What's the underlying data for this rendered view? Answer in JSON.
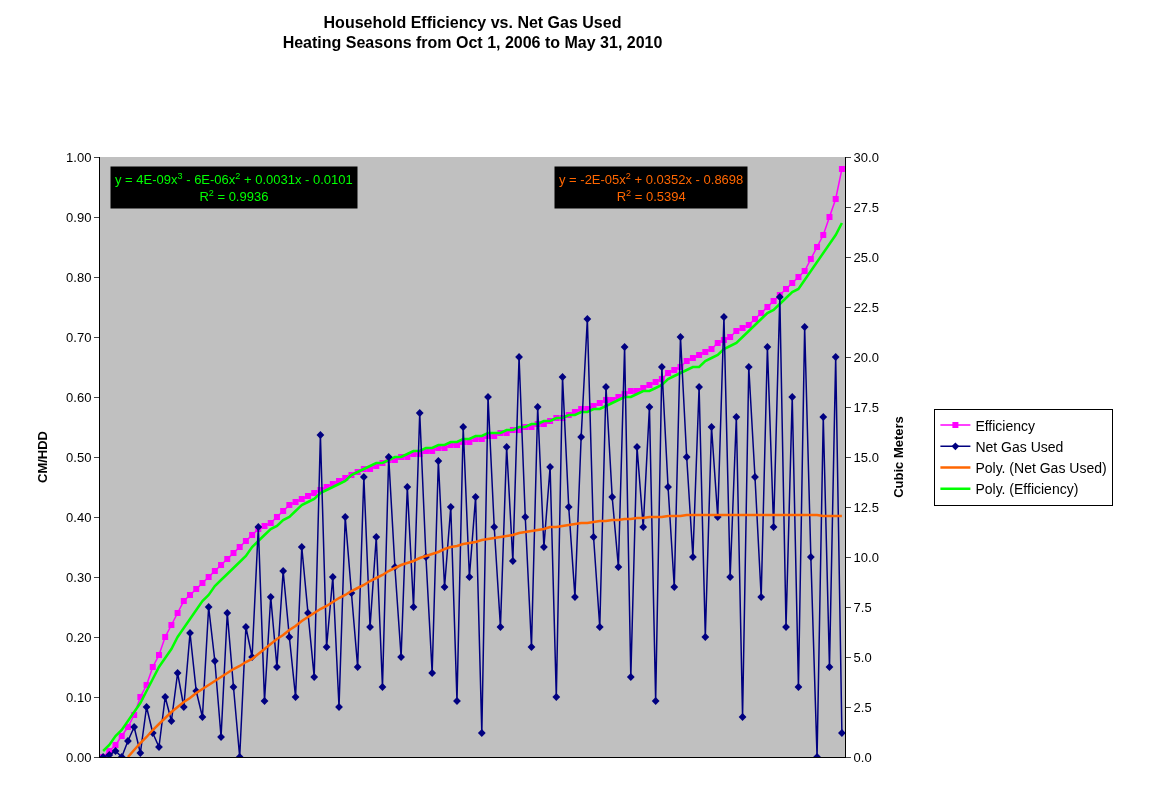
{
  "chart_data": {
    "type": "line",
    "title": "Household Efficiency vs. Net Gas Used",
    "subtitle": "Heating Seasons from Oct 1, 2006 to May 31, 2010",
    "ylabel": "CM/HDD",
    "y2label": "Cubic Meters",
    "categories": [
      null,
      null,
      null,
      null,
      null,
      null,
      null,
      null,
      null,
      null,
      null,
      null,
      null,
      null,
      null,
      null,
      null,
      null,
      null,
      null,
      null,
      null,
      null,
      null,
      null,
      null,
      null,
      null,
      null,
      null,
      null,
      null,
      null,
      null,
      null,
      null,
      null,
      null,
      null,
      null,
      null,
      null,
      null,
      null,
      null,
      null,
      null,
      null,
      null,
      null,
      null,
      null,
      null,
      null,
      null,
      null,
      null,
      null,
      null,
      null,
      null,
      null,
      null,
      null,
      null,
      null,
      null,
      null,
      null,
      null,
      null,
      null,
      null,
      null,
      null,
      null,
      null,
      null,
      null,
      null,
      null,
      null,
      null,
      null,
      null,
      null,
      null,
      null,
      null,
      null,
      null,
      null,
      null,
      null,
      null,
      null,
      null,
      null,
      null,
      null,
      null,
      null,
      null,
      null,
      null,
      null,
      null,
      null,
      null,
      null,
      null,
      null,
      null,
      null,
      null,
      null,
      null,
      null,
      null,
      null
    ],
    "series": [
      {
        "name": "Efficiency",
        "color": "#ff00ff",
        "marker": "square",
        "values": [
          0.0,
          0.01,
          0.02,
          0.035,
          0.05,
          0.07,
          0.1,
          0.12,
          0.15,
          0.17,
          0.2,
          0.22,
          0.24,
          0.26,
          0.27,
          0.28,
          0.29,
          0.3,
          0.31,
          0.32,
          0.33,
          0.34,
          0.35,
          0.36,
          0.37,
          0.38,
          0.385,
          0.39,
          0.4,
          0.41,
          0.42,
          0.425,
          0.43,
          0.435,
          0.44,
          0.445,
          0.45,
          0.455,
          0.46,
          0.465,
          0.47,
          0.475,
          0.48,
          0.48,
          0.485,
          0.49,
          0.495,
          0.495,
          0.5,
          0.5,
          0.505,
          0.505,
          0.51,
          0.51,
          0.515,
          0.515,
          0.52,
          0.52,
          0.525,
          0.525,
          0.53,
          0.53,
          0.535,
          0.535,
          0.54,
          0.54,
          0.545,
          0.545,
          0.55,
          0.55,
          0.555,
          0.555,
          0.56,
          0.565,
          0.565,
          0.57,
          0.575,
          0.58,
          0.58,
          0.585,
          0.59,
          0.595,
          0.595,
          0.6,
          0.605,
          0.61,
          0.61,
          0.615,
          0.62,
          0.625,
          0.63,
          0.64,
          0.645,
          0.65,
          0.66,
          0.665,
          0.67,
          0.675,
          0.68,
          0.69,
          0.695,
          0.7,
          0.71,
          0.715,
          0.72,
          0.73,
          0.74,
          0.75,
          0.76,
          0.77,
          0.78,
          0.79,
          0.8,
          0.81,
          0.83,
          0.85,
          0.87,
          0.9,
          0.93,
          0.98
        ]
      },
      {
        "name": "Net Gas Used",
        "color": "#000080",
        "marker": "diamond",
        "axis": "y2",
        "values": [
          0.0,
          0.1,
          0.3,
          0.0,
          0.8,
          1.5,
          0.2,
          2.5,
          1.2,
          0.5,
          3.0,
          1.8,
          4.2,
          2.5,
          6.2,
          3.3,
          2.0,
          7.5,
          4.8,
          1.0,
          7.2,
          3.5,
          0.0,
          6.5,
          5.0,
          11.5,
          2.8,
          8.0,
          4.5,
          9.3,
          6.0,
          3.0,
          10.5,
          7.2,
          4.0,
          16.1,
          5.5,
          9.0,
          2.5,
          12.0,
          8.2,
          4.5,
          14.0,
          6.5,
          11.0,
          3.5,
          15.0,
          9.5,
          5.0,
          13.5,
          7.5,
          17.2,
          10.0,
          4.2,
          14.8,
          8.5,
          12.5,
          2.8,
          16.5,
          9.0,
          13.0,
          1.2,
          18.0,
          11.5,
          6.5,
          15.5,
          9.8,
          20.0,
          12.0,
          5.5,
          17.5,
          10.5,
          14.5,
          3.0,
          19.0,
          12.5,
          8.0,
          16.0,
          21.9,
          11.0,
          6.5,
          18.5,
          13.0,
          9.5,
          20.5,
          4.0,
          15.5,
          11.5,
          17.5,
          2.8,
          19.5,
          13.5,
          8.5,
          21.0,
          15.0,
          10.0,
          18.5,
          6.0,
          16.5,
          12.0,
          22.0,
          9.0,
          17.0,
          2.0,
          19.5,
          14.0,
          8.0,
          20.5,
          11.5,
          23.0,
          6.5,
          18.0,
          3.5,
          21.5,
          10.0,
          0.0,
          17.0,
          4.5,
          20.0,
          1.2
        ]
      },
      {
        "name": "Poly. (Net Gas Used)",
        "color": "#ff6600",
        "marker": "none",
        "axis": "y2",
        "values": [
          null,
          null,
          null,
          null,
          0.0,
          0.35,
          0.7,
          1.0,
          1.35,
          1.65,
          1.95,
          2.25,
          2.5,
          2.75,
          2.95,
          3.2,
          3.4,
          3.6,
          3.8,
          4.0,
          4.2,
          4.4,
          4.55,
          4.75,
          4.9,
          5.15,
          5.4,
          5.65,
          5.9,
          6.1,
          6.35,
          6.55,
          6.8,
          7.0,
          7.2,
          7.4,
          7.55,
          7.75,
          7.95,
          8.1,
          8.3,
          8.45,
          8.6,
          8.8,
          8.95,
          9.1,
          9.3,
          9.45,
          9.6,
          9.7,
          9.8,
          9.95,
          10.05,
          10.15,
          10.25,
          10.4,
          10.5,
          10.55,
          10.65,
          10.7,
          10.75,
          10.85,
          10.9,
          10.95,
          11.0,
          11.05,
          11.1,
          11.2,
          11.25,
          11.3,
          11.35,
          11.4,
          11.5,
          11.5,
          11.55,
          11.6,
          11.65,
          11.7,
          11.7,
          11.75,
          11.8,
          11.8,
          11.85,
          11.85,
          11.9,
          11.9,
          11.95,
          11.95,
          12.0,
          12.0,
          12.0,
          12.05,
          12.05,
          12.05,
          12.1,
          12.1,
          12.1,
          12.1,
          12.1,
          12.1,
          12.1,
          12.1,
          12.1,
          12.1,
          12.1,
          12.1,
          12.1,
          12.1,
          12.1,
          12.1,
          12.1,
          12.1,
          12.1,
          12.1,
          12.1,
          12.1,
          12.05,
          12.05,
          12.05,
          12.05
        ]
      },
      {
        "name": "Poly. (Efficiency)",
        "color": "#00ff00",
        "marker": "none",
        "values": [
          0.01,
          0.02,
          0.035,
          0.045,
          0.06,
          0.075,
          0.09,
          0.11,
          0.13,
          0.15,
          0.165,
          0.18,
          0.2,
          0.215,
          0.23,
          0.245,
          0.26,
          0.27,
          0.285,
          0.295,
          0.305,
          0.315,
          0.325,
          0.335,
          0.35,
          0.36,
          0.37,
          0.38,
          0.385,
          0.395,
          0.4,
          0.41,
          0.42,
          0.425,
          0.43,
          0.44,
          0.445,
          0.45,
          0.455,
          0.46,
          0.47,
          0.475,
          0.48,
          0.485,
          0.49,
          0.49,
          0.495,
          0.5,
          0.5,
          0.505,
          0.51,
          0.51,
          0.515,
          0.515,
          0.52,
          0.52,
          0.525,
          0.525,
          0.53,
          0.53,
          0.535,
          0.535,
          0.54,
          0.54,
          0.54,
          0.545,
          0.545,
          0.55,
          0.55,
          0.555,
          0.555,
          0.56,
          0.56,
          0.565,
          0.565,
          0.57,
          0.57,
          0.575,
          0.575,
          0.58,
          0.58,
          0.585,
          0.59,
          0.595,
          0.6,
          0.6,
          0.605,
          0.61,
          0.61,
          0.615,
          0.62,
          0.63,
          0.635,
          0.64,
          0.645,
          0.65,
          0.65,
          0.66,
          0.665,
          0.67,
          0.68,
          0.685,
          0.69,
          0.7,
          0.71,
          0.72,
          0.73,
          0.74,
          0.745,
          0.755,
          0.765,
          0.775,
          0.78,
          0.795,
          0.81,
          0.825,
          0.84,
          0.855,
          0.87,
          0.89
        ]
      }
    ],
    "ylim": [
      0,
      1
    ],
    "yticks": [
      {
        "value": 0,
        "label": "0.00"
      },
      {
        "value": 0.1,
        "label": "0.10"
      },
      {
        "value": 0.2,
        "label": "0.20"
      },
      {
        "value": 0.3,
        "label": "0.30"
      },
      {
        "value": 0.4,
        "label": "0.40"
      },
      {
        "value": 0.5,
        "label": "0.50"
      },
      {
        "value": 0.6,
        "label": "0.60"
      },
      {
        "value": 0.7,
        "label": "0.70"
      },
      {
        "value": 0.8,
        "label": "0.80"
      },
      {
        "value": 0.9,
        "label": "0.90"
      },
      {
        "value": 1,
        "label": "1.00"
      }
    ],
    "y2lim": [
      0,
      30
    ],
    "y2ticks": [
      {
        "value": 0,
        "label": "0.0"
      },
      {
        "value": 2.5,
        "label": "2.5"
      },
      {
        "value": 5,
        "label": "5.0"
      },
      {
        "value": 7.5,
        "label": "7.5"
      },
      {
        "value": 10,
        "label": "10.0"
      },
      {
        "value": 12.5,
        "label": "12.5"
      },
      {
        "value": 15,
        "label": "15.0"
      },
      {
        "value": 17.5,
        "label": "17.5"
      },
      {
        "value": 20,
        "label": "20.0"
      },
      {
        "value": 22.5,
        "label": "22.5"
      },
      {
        "value": 25,
        "label": "25.0"
      },
      {
        "value": 27.5,
        "label": "27.5"
      },
      {
        "value": 30,
        "label": "30.0"
      }
    ],
    "annotations": [
      "y = 4E-09x$^{3}$ - 6E-06x$^{2}$ + 0.0031x - 0.0101\nR$^{2}$ = 0.9936",
      "y = -2E-05x$^{2}$ + 0.0352x - 0.8698\nR$^{2}$ = 0.5394"
    ],
    "grid": false,
    "legend": "right",
    "line_style": "solid"
  }
}
